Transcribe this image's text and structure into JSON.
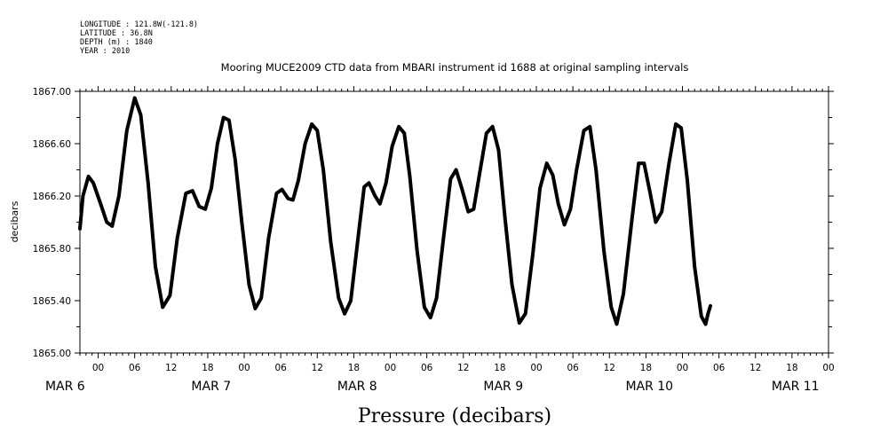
{
  "header": {
    "longitude": "LONGITUDE : 121.8W(-121.8)",
    "latitude": "LATITUDE : 36.8N",
    "depth": "DEPTH (m) : 1840",
    "year": "YEAR : 2010"
  },
  "chart_data": {
    "type": "line",
    "title": "Mooring MUCE2009 CTD data from MBARI instrument id 1688 at original sampling intervals",
    "xlabel": "Pressure (decibars)",
    "ylabel": "decibars",
    "x_unit": "hours since 2010-03-05 00:00",
    "xlim": [
      21,
      144
    ],
    "ylim": [
      1865.0,
      1867.0
    ],
    "y_ticks": [
      "1867.00",
      "1866.60",
      "1866.20",
      "1865.80",
      "1865.40",
      "1865.00"
    ],
    "y_tick_values": [
      1867.0,
      1866.6,
      1866.2,
      1865.8,
      1865.4,
      1865.0
    ],
    "x_ticks": [
      {
        "x": 24,
        "label": "00"
      },
      {
        "x": 30,
        "label": "06"
      },
      {
        "x": 36,
        "label": "12"
      },
      {
        "x": 42,
        "label": "18"
      },
      {
        "x": 48,
        "label": "00"
      },
      {
        "x": 54,
        "label": "06"
      },
      {
        "x": 60,
        "label": "12"
      },
      {
        "x": 66,
        "label": "18"
      },
      {
        "x": 72,
        "label": "00"
      },
      {
        "x": 78,
        "label": "06"
      },
      {
        "x": 84,
        "label": "12"
      },
      {
        "x": 90,
        "label": "18"
      },
      {
        "x": 96,
        "label": "00"
      },
      {
        "x": 102,
        "label": "06"
      },
      {
        "x": 108,
        "label": "12"
      },
      {
        "x": 114,
        "label": "18"
      },
      {
        "x": 120,
        "label": "00"
      },
      {
        "x": 126,
        "label": "06"
      },
      {
        "x": 132,
        "label": "12"
      },
      {
        "x": 138,
        "label": "18"
      },
      {
        "x": 144,
        "label": "00"
      }
    ],
    "day_labels": [
      {
        "x": 36,
        "label": "MAR  6"
      },
      {
        "x": 60,
        "label": "MAR  7"
      },
      {
        "x": 84,
        "label": "MAR  8"
      },
      {
        "x": 108,
        "label": "MAR  9"
      },
      {
        "x": 132,
        "label": "MAR 10"
      },
      {
        "x": 156,
        "label": "MAR 11"
      }
    ],
    "series": [
      {
        "points": [
          [
            21.0,
            1865.95
          ],
          [
            21.5,
            1866.2
          ],
          [
            22.4,
            1866.35
          ],
          [
            23.2,
            1866.3
          ],
          [
            24.4,
            1866.14
          ],
          [
            25.4,
            1866.0
          ],
          [
            26.3,
            1865.97
          ],
          [
            27.4,
            1866.2
          ],
          [
            28.7,
            1866.7
          ],
          [
            30.0,
            1866.95
          ],
          [
            31.0,
            1866.82
          ],
          [
            32.2,
            1866.3
          ],
          [
            33.4,
            1865.66
          ],
          [
            34.6,
            1865.35
          ],
          [
            35.8,
            1865.44
          ],
          [
            37.0,
            1865.88
          ],
          [
            38.4,
            1866.22
          ],
          [
            39.5,
            1866.24
          ],
          [
            40.6,
            1866.12
          ],
          [
            41.6,
            1866.1
          ],
          [
            42.6,
            1866.26
          ],
          [
            43.6,
            1866.6
          ],
          [
            44.6,
            1866.8
          ],
          [
            45.5,
            1866.78
          ],
          [
            46.5,
            1866.48
          ],
          [
            47.6,
            1866.0
          ],
          [
            48.8,
            1865.52
          ],
          [
            49.8,
            1865.34
          ],
          [
            50.8,
            1865.42
          ],
          [
            52.0,
            1865.88
          ],
          [
            53.3,
            1866.22
          ],
          [
            54.2,
            1866.25
          ],
          [
            55.2,
            1866.18
          ],
          [
            56.0,
            1866.17
          ],
          [
            56.9,
            1866.32
          ],
          [
            58.0,
            1866.6
          ],
          [
            59.1,
            1866.75
          ],
          [
            60.0,
            1866.7
          ],
          [
            61.0,
            1866.4
          ],
          [
            62.2,
            1865.85
          ],
          [
            63.5,
            1865.42
          ],
          [
            64.5,
            1865.3
          ],
          [
            65.5,
            1865.4
          ],
          [
            66.8,
            1865.92
          ],
          [
            67.7,
            1866.27
          ],
          [
            68.5,
            1866.3
          ],
          [
            69.5,
            1866.2
          ],
          [
            70.3,
            1866.14
          ],
          [
            71.3,
            1866.3
          ],
          [
            72.3,
            1866.58
          ],
          [
            73.4,
            1866.73
          ],
          [
            74.3,
            1866.68
          ],
          [
            75.2,
            1866.35
          ],
          [
            76.4,
            1865.78
          ],
          [
            77.6,
            1865.35
          ],
          [
            78.6,
            1865.27
          ],
          [
            79.6,
            1865.42
          ],
          [
            80.8,
            1865.9
          ],
          [
            81.9,
            1866.33
          ],
          [
            82.8,
            1866.4
          ],
          [
            83.8,
            1866.25
          ],
          [
            84.8,
            1866.08
          ],
          [
            85.7,
            1866.1
          ],
          [
            86.7,
            1866.38
          ],
          [
            87.8,
            1866.68
          ],
          [
            88.8,
            1866.73
          ],
          [
            89.8,
            1866.55
          ],
          [
            90.8,
            1866.05
          ],
          [
            92.0,
            1865.52
          ],
          [
            93.2,
            1865.23
          ],
          [
            94.2,
            1865.3
          ],
          [
            95.4,
            1865.75
          ],
          [
            96.6,
            1866.26
          ],
          [
            97.7,
            1866.45
          ],
          [
            98.7,
            1866.36
          ],
          [
            99.6,
            1866.14
          ],
          [
            100.6,
            1865.98
          ],
          [
            101.6,
            1866.1
          ],
          [
            102.6,
            1866.4
          ],
          [
            103.8,
            1866.7
          ],
          [
            104.8,
            1866.73
          ],
          [
            105.8,
            1866.4
          ],
          [
            107.1,
            1865.78
          ],
          [
            108.3,
            1865.35
          ],
          [
            109.2,
            1865.22
          ],
          [
            110.3,
            1865.45
          ],
          [
            111.7,
            1866.02
          ],
          [
            112.8,
            1866.45
          ],
          [
            113.7,
            1866.45
          ],
          [
            114.7,
            1866.22
          ],
          [
            115.6,
            1866.0
          ],
          [
            116.6,
            1866.08
          ],
          [
            117.8,
            1866.45
          ],
          [
            118.9,
            1866.75
          ],
          [
            119.8,
            1866.72
          ],
          [
            120.8,
            1866.32
          ],
          [
            122.0,
            1865.66
          ],
          [
            123.1,
            1865.28
          ],
          [
            123.8,
            1865.22
          ],
          [
            124.2,
            1865.3
          ],
          [
            124.6,
            1865.36
          ]
        ]
      }
    ]
  }
}
